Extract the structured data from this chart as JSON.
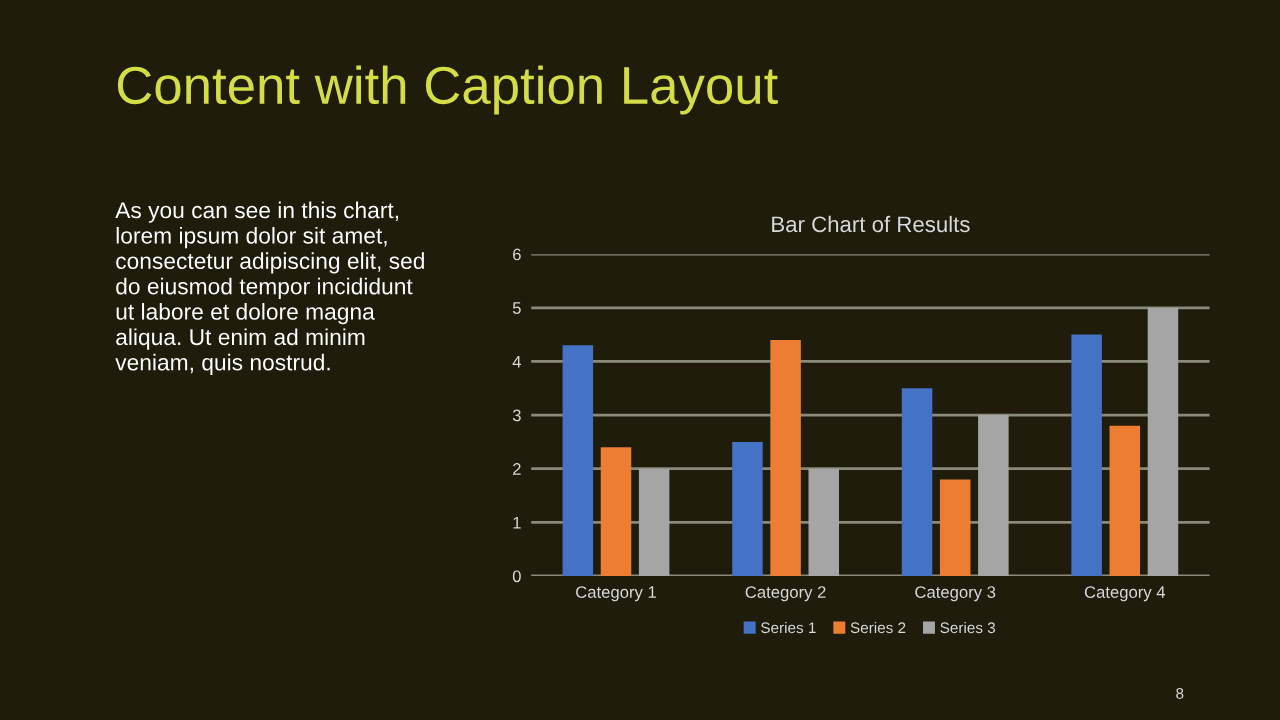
{
  "chart_data": {
    "type": "bar",
    "title": "Bar Chart of Results",
    "categories": [
      "Category 1",
      "Category 2",
      "Category 3",
      "Category 4"
    ],
    "series": [
      {
        "name": "Series 1",
        "color": "#4472c4",
        "values": [
          4.3,
          2.5,
          3.5,
          4.5
        ]
      },
      {
        "name": "Series 2",
        "color": "#ed7d31",
        "values": [
          2.4,
          4.4,
          1.8,
          2.8
        ]
      },
      {
        "name": "Series 3",
        "color": "#a5a5a5",
        "values": [
          2,
          2,
          3,
          5
        ]
      }
    ],
    "ylim": [
      0,
      6
    ],
    "yticks": [
      0,
      1,
      2,
      3,
      4,
      5,
      6
    ],
    "grid": "y",
    "legend": "bottom",
    "annotations": [
      "Content with Caption Layout",
      "As you can see in this chart,\nlorem ipsum dolor sit amet,\nconsectetur adipiscing elit, sed\ndo eiusmod tempor incididunt\nut labore et dolore magna\naliqua. Ut enim ad minim\nveniam, quis nostrud.",
      "8"
    ]
  }
}
